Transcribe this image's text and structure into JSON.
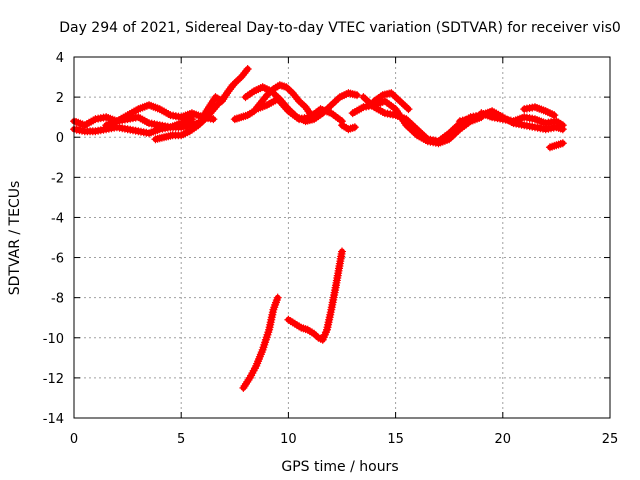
{
  "chart_data": {
    "type": "scatter",
    "title": "Day 294 of 2021, Sidereal Day-to-day VTEC variation (SDTVAR) for receiver vis0",
    "xlabel": "GPS time / hours",
    "ylabel": "SDTVAR / TECUs",
    "xlim": [
      0,
      25
    ],
    "ylim": [
      -14,
      4
    ],
    "xticks": [
      "0",
      "5",
      "10",
      "15",
      "20",
      "25"
    ],
    "yticks": [
      "4",
      "2",
      "0",
      "-2",
      "-4",
      "-6",
      "-8",
      "-10",
      "-12",
      "-14"
    ],
    "grid": true,
    "marker_color": "#ff0000",
    "series": [
      {
        "name": "trace-1",
        "x": [
          0.0,
          0.5,
          1.0,
          1.5,
          2.0,
          2.5,
          3.0,
          3.5,
          4.0,
          4.5,
          5.0,
          5.5,
          6.0
        ],
        "y": [
          0.8,
          0.6,
          0.9,
          1.0,
          0.8,
          0.9,
          1.0,
          0.7,
          0.6,
          0.5,
          0.5,
          0.6,
          0.8
        ]
      },
      {
        "name": "trace-2",
        "x": [
          0.0,
          0.5,
          1.0,
          1.5,
          2.0,
          2.5,
          3.0,
          3.5,
          4.0,
          4.5,
          5.0,
          5.5
        ],
        "y": [
          0.4,
          0.3,
          0.3,
          0.4,
          0.5,
          0.4,
          0.3,
          0.2,
          0.4,
          0.5,
          0.7,
          0.9
        ]
      },
      {
        "name": "trace-3",
        "x": [
          1.5,
          2.0,
          2.5,
          3.0,
          3.5,
          4.0,
          4.5,
          5.0,
          5.5,
          6.0,
          6.5
        ],
        "y": [
          0.6,
          0.8,
          1.1,
          1.4,
          1.6,
          1.4,
          1.1,
          1.0,
          1.2,
          1.0,
          0.9
        ]
      },
      {
        "name": "trace-4",
        "x": [
          3.8,
          4.2,
          4.6,
          5.0,
          5.4,
          5.8,
          6.2,
          6.6,
          7.0,
          7.4
        ],
        "y": [
          -0.1,
          0.0,
          0.1,
          0.1,
          0.3,
          0.6,
          1.0,
          1.5,
          2.0,
          2.6
        ]
      },
      {
        "name": "trace-5",
        "x": [
          6.0,
          6.3,
          6.6,
          6.9,
          7.2,
          7.5,
          7.8,
          8.1
        ],
        "y": [
          1.0,
          1.5,
          2.0,
          1.8,
          2.3,
          2.7,
          3.0,
          3.4
        ]
      },
      {
        "name": "trace-6",
        "x": [
          7.5,
          7.8,
          8.1,
          8.4,
          8.7,
          9.0,
          9.3,
          9.6,
          9.9,
          10.2,
          10.5,
          10.8,
          11.0
        ],
        "y": [
          0.9,
          1.0,
          1.1,
          1.3,
          1.7,
          2.1,
          2.4,
          2.6,
          2.5,
          2.2,
          1.8,
          1.5,
          1.2
        ]
      },
      {
        "name": "trace-7",
        "x": [
          8.0,
          8.4,
          8.8,
          9.2,
          9.6,
          10.0,
          10.4,
          10.8,
          11.2,
          11.6,
          12.0,
          12.4,
          12.8,
          13.2
        ],
        "y": [
          2.0,
          2.3,
          2.5,
          2.3,
          1.9,
          1.4,
          1.0,
          0.8,
          0.9,
          1.2,
          1.6,
          2.0,
          2.2,
          2.1
        ]
      },
      {
        "name": "trace-8",
        "x": [
          8.5,
          9.0,
          9.5,
          10.0,
          10.5,
          11.0,
          11.5,
          12.0,
          12.5
        ],
        "y": [
          1.4,
          1.6,
          1.9,
          1.3,
          0.9,
          1.0,
          1.4,
          1.2,
          0.8
        ]
      },
      {
        "name": "trace-9",
        "x": [
          12.5,
          12.8,
          13.1
        ],
        "y": [
          0.6,
          0.4,
          0.5
        ]
      },
      {
        "name": "trace-10",
        "x": [
          13.0,
          13.5,
          14.0,
          14.5,
          15.0,
          15.5,
          16.0,
          16.5,
          17.0,
          17.5,
          18.0,
          18.5,
          19.0
        ],
        "y": [
          1.2,
          1.5,
          1.6,
          1.8,
          1.4,
          0.6,
          0.1,
          -0.2,
          -0.3,
          -0.1,
          0.4,
          0.8,
          1.0
        ]
      },
      {
        "name": "trace-11",
        "x": [
          13.5,
          14.0,
          14.5,
          15.0,
          15.5,
          16.0,
          16.5,
          17.0,
          17.5,
          18.0,
          18.5,
          19.0,
          19.5
        ],
        "y": [
          2.0,
          1.5,
          1.2,
          1.1,
          0.9,
          0.4,
          -0.1,
          -0.2,
          0.2,
          0.7,
          1.0,
          1.1,
          1.2
        ]
      },
      {
        "name": "trace-12",
        "x": [
          14.0,
          14.4,
          14.8,
          15.2,
          15.6
        ],
        "y": [
          1.8,
          2.1,
          2.2,
          1.8,
          1.4
        ]
      },
      {
        "name": "trace-13",
        "x": [
          18.0,
          18.5,
          19.0,
          19.5,
          20.0,
          20.5,
          21.0,
          21.5,
          22.0,
          22.5,
          22.8
        ],
        "y": [
          0.8,
          0.9,
          1.1,
          1.3,
          1.0,
          0.7,
          0.6,
          0.5,
          0.4,
          0.5,
          0.4
        ]
      },
      {
        "name": "trace-14",
        "x": [
          19.0,
          19.5,
          20.0,
          20.5,
          21.0,
          21.5,
          22.0,
          22.5,
          22.8
        ],
        "y": [
          1.2,
          1.0,
          0.9,
          0.8,
          1.0,
          0.9,
          0.7,
          0.8,
          0.6
        ]
      },
      {
        "name": "trace-15",
        "x": [
          21.0,
          21.5,
          22.0,
          22.4
        ],
        "y": [
          1.4,
          1.5,
          1.3,
          1.1
        ]
      },
      {
        "name": "trace-16",
        "x": [
          22.2,
          22.5,
          22.8
        ],
        "y": [
          -0.5,
          -0.4,
          -0.3
        ]
      },
      {
        "name": "trace-17",
        "x": [
          7.9,
          8.2,
          8.5,
          8.8,
          9.1,
          9.3,
          9.5
        ],
        "y": [
          -12.5,
          -12.0,
          -11.4,
          -10.6,
          -9.6,
          -8.6,
          -8.0
        ]
      },
      {
        "name": "trace-18",
        "x": [
          10.0,
          10.3,
          10.6,
          10.9,
          11.2,
          11.4,
          11.6,
          11.8,
          12.0,
          12.2,
          12.4,
          12.5
        ],
        "y": [
          -9.1,
          -9.3,
          -9.5,
          -9.6,
          -9.8,
          -10.0,
          -10.1,
          -9.6,
          -8.6,
          -7.5,
          -6.3,
          -5.7
        ]
      }
    ]
  }
}
